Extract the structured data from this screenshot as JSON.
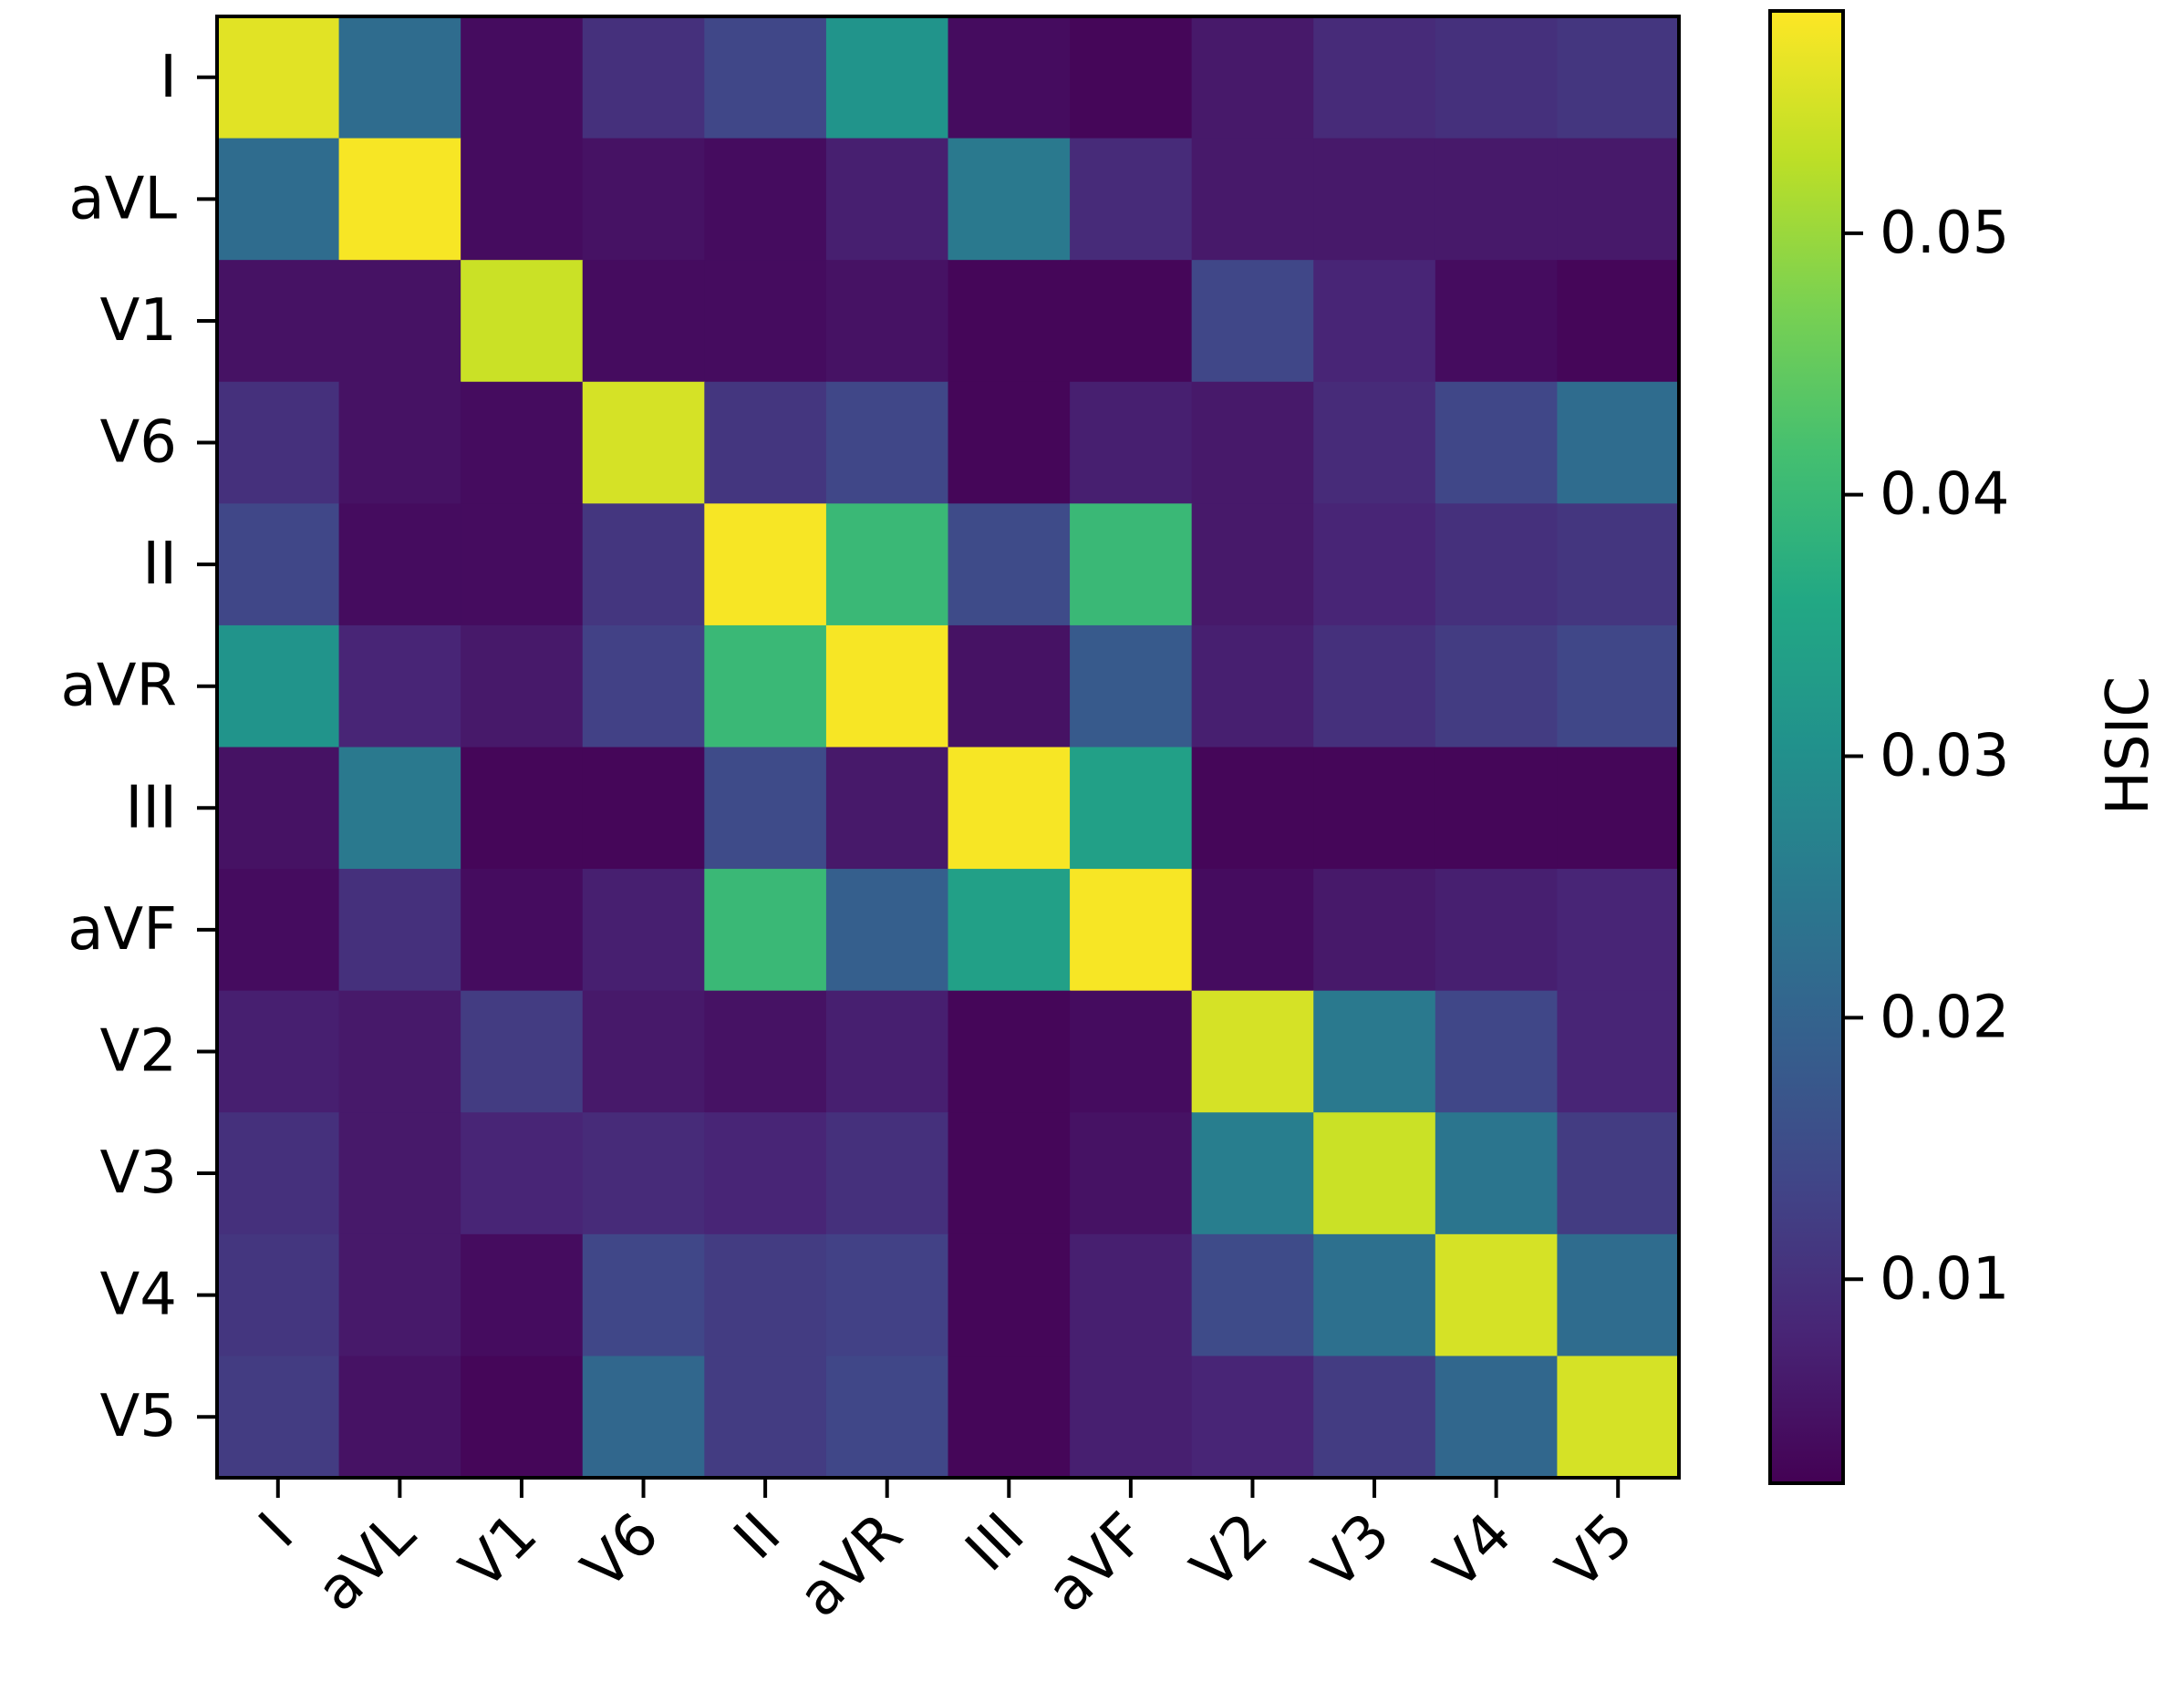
{
  "chart_data": {
    "type": "heatmap",
    "title": "",
    "xlabel": "",
    "ylabel": "",
    "x_labels": [
      "I",
      "aVL",
      "V1",
      "V6",
      "II",
      "aVR",
      "III",
      "aVF",
      "V2",
      "V3",
      "V4",
      "V5"
    ],
    "y_labels": [
      "I",
      "aVL",
      "V1",
      "V6",
      "II",
      "aVR",
      "III",
      "aVF",
      "V2",
      "V3",
      "V4",
      "V5"
    ],
    "values": [
      [
        0.056,
        0.022,
        0.004,
        0.01,
        0.014,
        0.031,
        0.004,
        0.003,
        0.006,
        0.009,
        0.01,
        0.011
      ],
      [
        0.022,
        0.058,
        0.004,
        0.005,
        0.004,
        0.007,
        0.025,
        0.009,
        0.006,
        0.006,
        0.006,
        0.006
      ],
      [
        0.005,
        0.005,
        0.054,
        0.004,
        0.004,
        0.005,
        0.003,
        0.003,
        0.014,
        0.008,
        0.004,
        0.003
      ],
      [
        0.01,
        0.005,
        0.004,
        0.055,
        0.011,
        0.014,
        0.003,
        0.007,
        0.006,
        0.009,
        0.014,
        0.022
      ],
      [
        0.014,
        0.004,
        0.004,
        0.011,
        0.058,
        0.04,
        0.015,
        0.04,
        0.006,
        0.008,
        0.01,
        0.011
      ],
      [
        0.031,
        0.008,
        0.006,
        0.013,
        0.04,
        0.058,
        0.005,
        0.018,
        0.007,
        0.01,
        0.012,
        0.014
      ],
      [
        0.005,
        0.025,
        0.003,
        0.003,
        0.015,
        0.006,
        0.058,
        0.034,
        0.003,
        0.003,
        0.003,
        0.003
      ],
      [
        0.004,
        0.01,
        0.004,
        0.007,
        0.04,
        0.019,
        0.034,
        0.058,
        0.004,
        0.006,
        0.007,
        0.008
      ],
      [
        0.007,
        0.006,
        0.012,
        0.006,
        0.005,
        0.007,
        0.003,
        0.004,
        0.055,
        0.025,
        0.014,
        0.008
      ],
      [
        0.01,
        0.006,
        0.008,
        0.009,
        0.008,
        0.01,
        0.003,
        0.005,
        0.026,
        0.054,
        0.024,
        0.012
      ],
      [
        0.011,
        0.006,
        0.004,
        0.014,
        0.012,
        0.013,
        0.003,
        0.007,
        0.015,
        0.023,
        0.055,
        0.022
      ],
      [
        0.012,
        0.005,
        0.003,
        0.021,
        0.012,
        0.014,
        0.003,
        0.007,
        0.008,
        0.012,
        0.021,
        0.055
      ]
    ],
    "colormap": "viridis",
    "vmin": 0.0022,
    "vmax": 0.0585,
    "colorbar": {
      "label": "HSIC",
      "ticks": [
        0.01,
        0.02,
        0.03,
        0.04,
        0.05
      ],
      "tick_labels": [
        "0.01",
        "0.02",
        "0.03",
        "0.04",
        "0.05"
      ]
    },
    "grid": false
  }
}
